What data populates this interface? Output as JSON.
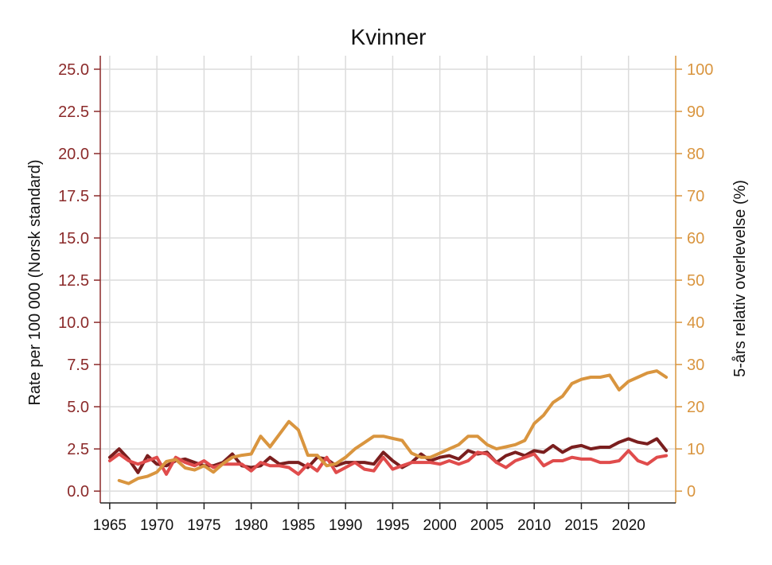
{
  "chart_data": {
    "type": "line",
    "title": "Kvinner",
    "ylabel": "Rate per 100 000 (Norsk standard)",
    "y2label": "5-års relativ overlevelse (%)",
    "xlim": [
      1964,
      2025
    ],
    "ylim": [
      -0.7,
      25.8
    ],
    "y2lim": [
      -2.8,
      103.2
    ],
    "x_ticks": [
      1965,
      1970,
      1975,
      1980,
      1985,
      1990,
      1995,
      2000,
      2005,
      2010,
      2015,
      2020
    ],
    "y_ticks": [
      0.0,
      2.5,
      5.0,
      7.5,
      10.0,
      12.5,
      15.0,
      17.5,
      20.0,
      22.5,
      25.0
    ],
    "y_tick_labels": [
      "0.0",
      "2.5",
      "5.0",
      "7.5",
      "10.0",
      "12.5",
      "15.0",
      "17.5",
      "20.0",
      "22.5",
      "25.0"
    ],
    "y2_ticks": [
      0,
      10,
      20,
      30,
      40,
      50,
      60,
      70,
      80,
      90,
      100
    ],
    "grid": true,
    "axis_colors": {
      "left": "#8b2a2a",
      "right": "#d9953f"
    },
    "series": [
      {
        "axis": "left",
        "color": "#7a1e1e",
        "x": [
          1965,
          1966,
          1967,
          1968,
          1969,
          1970,
          1971,
          1972,
          1973,
          1974,
          1975,
          1976,
          1977,
          1978,
          1979,
          1980,
          1981,
          1982,
          1983,
          1984,
          1985,
          1986,
          1987,
          1988,
          1989,
          1990,
          1991,
          1992,
          1993,
          1994,
          1995,
          1996,
          1997,
          1998,
          1999,
          2000,
          2001,
          2002,
          2003,
          2004,
          2005,
          2006,
          2007,
          2008,
          2009,
          2010,
          2011,
          2012,
          2013,
          2014,
          2015,
          2016,
          2017,
          2018,
          2019,
          2020,
          2021,
          2022,
          2023,
          2024
        ],
        "values": [
          2.0,
          2.5,
          1.9,
          1.1,
          2.1,
          1.6,
          1.5,
          1.8,
          1.9,
          1.7,
          1.5,
          1.5,
          1.7,
          2.2,
          1.5,
          1.4,
          1.5,
          2.0,
          1.6,
          1.7,
          1.7,
          1.4,
          2.0,
          1.9,
          1.5,
          1.7,
          1.7,
          1.7,
          1.6,
          2.3,
          1.8,
          1.4,
          1.7,
          2.2,
          1.8,
          2.0,
          2.1,
          1.9,
          2.4,
          2.2,
          2.3,
          1.7,
          2.1,
          2.3,
          2.1,
          2.4,
          2.3,
          2.7,
          2.3,
          2.6,
          2.7,
          2.5,
          2.6,
          2.6,
          2.9,
          3.1,
          2.9,
          2.8,
          3.1,
          2.4
        ]
      },
      {
        "axis": "left",
        "color": "#e04c4c",
        "x": [
          1965,
          1966,
          1967,
          1968,
          1969,
          1970,
          1971,
          1972,
          1973,
          1974,
          1975,
          1976,
          1977,
          1978,
          1979,
          1980,
          1981,
          1982,
          1983,
          1984,
          1985,
          1986,
          1987,
          1988,
          1989,
          1990,
          1991,
          1992,
          1993,
          1994,
          1995,
          1996,
          1997,
          1998,
          1999,
          2000,
          2001,
          2002,
          2003,
          2004,
          2005,
          2006,
          2007,
          2008,
          2009,
          2010,
          2011,
          2012,
          2013,
          2014,
          2015,
          2016,
          2017,
          2018,
          2019,
          2020,
          2021,
          2022,
          2023,
          2024
        ],
        "values": [
          1.8,
          2.2,
          1.8,
          1.6,
          1.8,
          2.0,
          1.0,
          2.0,
          1.7,
          1.5,
          1.8,
          1.4,
          1.6,
          1.6,
          1.6,
          1.2,
          1.7,
          1.5,
          1.5,
          1.4,
          1.0,
          1.6,
          1.2,
          2.0,
          1.1,
          1.4,
          1.7,
          1.3,
          1.2,
          2.0,
          1.3,
          1.5,
          1.7,
          1.7,
          1.7,
          1.6,
          1.8,
          1.6,
          1.8,
          2.3,
          2.2,
          1.7,
          1.4,
          1.8,
          2.0,
          2.2,
          1.5,
          1.8,
          1.8,
          2.0,
          1.9,
          1.9,
          1.7,
          1.7,
          1.8,
          2.4,
          1.8,
          1.6,
          2.0,
          2.1
        ]
      },
      {
        "axis": "right",
        "color": "#d9953f",
        "x": [
          1966,
          1967,
          1968,
          1969,
          1970,
          1971,
          1972,
          1973,
          1974,
          1975,
          1976,
          1977,
          1978,
          1979,
          1980,
          1981,
          1982,
          1983,
          1984,
          1985,
          1986,
          1987,
          1988,
          1989,
          1990,
          1991,
          1992,
          1993,
          1994,
          1995,
          1996,
          1997,
          1998,
          1999,
          2000,
          2001,
          2002,
          2003,
          2004,
          2005,
          2006,
          2007,
          2008,
          2009,
          2010,
          2011,
          2012,
          2013,
          2014,
          2015,
          2016,
          2017,
          2018,
          2019,
          2020,
          2021,
          2022,
          2023,
          2024
        ],
        "values": [
          2.5,
          1.8,
          3.0,
          3.5,
          4.5,
          7.0,
          7.5,
          5.5,
          5.0,
          6.0,
          4.5,
          6.5,
          8.0,
          8.5,
          8.8,
          13.0,
          10.5,
          13.5,
          16.5,
          14.5,
          8.5,
          8.5,
          6.0,
          6.5,
          8.0,
          10.0,
          11.5,
          13.0,
          13.0,
          12.5,
          12.0,
          9.0,
          8.0,
          8.0,
          9.0,
          10.0,
          11.0,
          13.0,
          13.0,
          11.0,
          10.0,
          10.5,
          11.0,
          12.0,
          16.0,
          18.0,
          21.0,
          22.5,
          25.5,
          26.5,
          27.0,
          27.0,
          27.5,
          24.0,
          26.0,
          27.0,
          28.0,
          28.5,
          27.0
        ]
      }
    ]
  }
}
